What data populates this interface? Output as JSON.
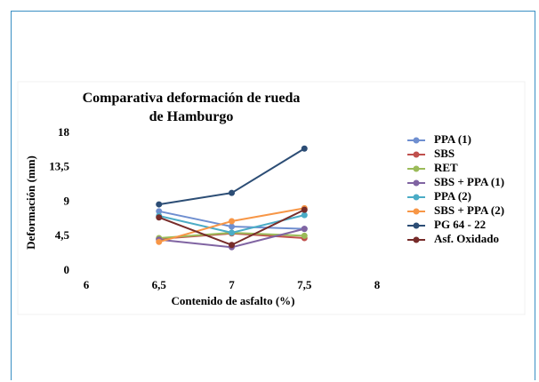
{
  "chart_data": {
    "type": "line",
    "title": "Comparativa deformación de rueda de Hamburgo",
    "xlabel": "Contenido de asfalto (%)",
    "ylabel": "Deformación (mm)",
    "x": [
      6.5,
      7,
      7.5
    ],
    "xlim": [
      6,
      8
    ],
    "xticks": [
      6,
      {
        "value": 6.5,
        "label": "6,5"
      },
      7,
      {
        "value": 7.5,
        "label": "7,5"
      },
      8
    ],
    "ylim": [
      0,
      18
    ],
    "yticks": [
      0,
      {
        "value": 4.5,
        "label": "4,5"
      },
      9,
      {
        "value": 13.5,
        "label": "13,5"
      },
      18
    ],
    "grid": false,
    "legend": "right",
    "series": [
      {
        "name": "PPA (1)",
        "color": "#6f8fd0",
        "values": [
          7.8,
          5.8,
          5.5
        ]
      },
      {
        "name": "SBS",
        "color": "#c0504d",
        "values": [
          4.2,
          4.9,
          4.3
        ]
      },
      {
        "name": "RET",
        "color": "#9bbb59",
        "values": [
          4.3,
          5.0,
          4.6
        ]
      },
      {
        "name": "SBS + PPA (1)",
        "color": "#8064a2",
        "values": [
          4.1,
          3.1,
          5.5
        ]
      },
      {
        "name": "PPA (2)",
        "color": "#4bacc6",
        "values": [
          7.2,
          5.0,
          7.3
        ]
      },
      {
        "name": "SBS + PPA (2)",
        "color": "#f79646",
        "values": [
          3.8,
          6.5,
          8.2
        ]
      },
      {
        "name": "PG 64 - 22",
        "color": "#2c4d75",
        "values": [
          8.7,
          10.2,
          16.0
        ]
      },
      {
        "name": "Asf. Oxidado",
        "color": "#772c2a",
        "values": [
          7.0,
          3.4,
          8.0
        ]
      }
    ]
  }
}
